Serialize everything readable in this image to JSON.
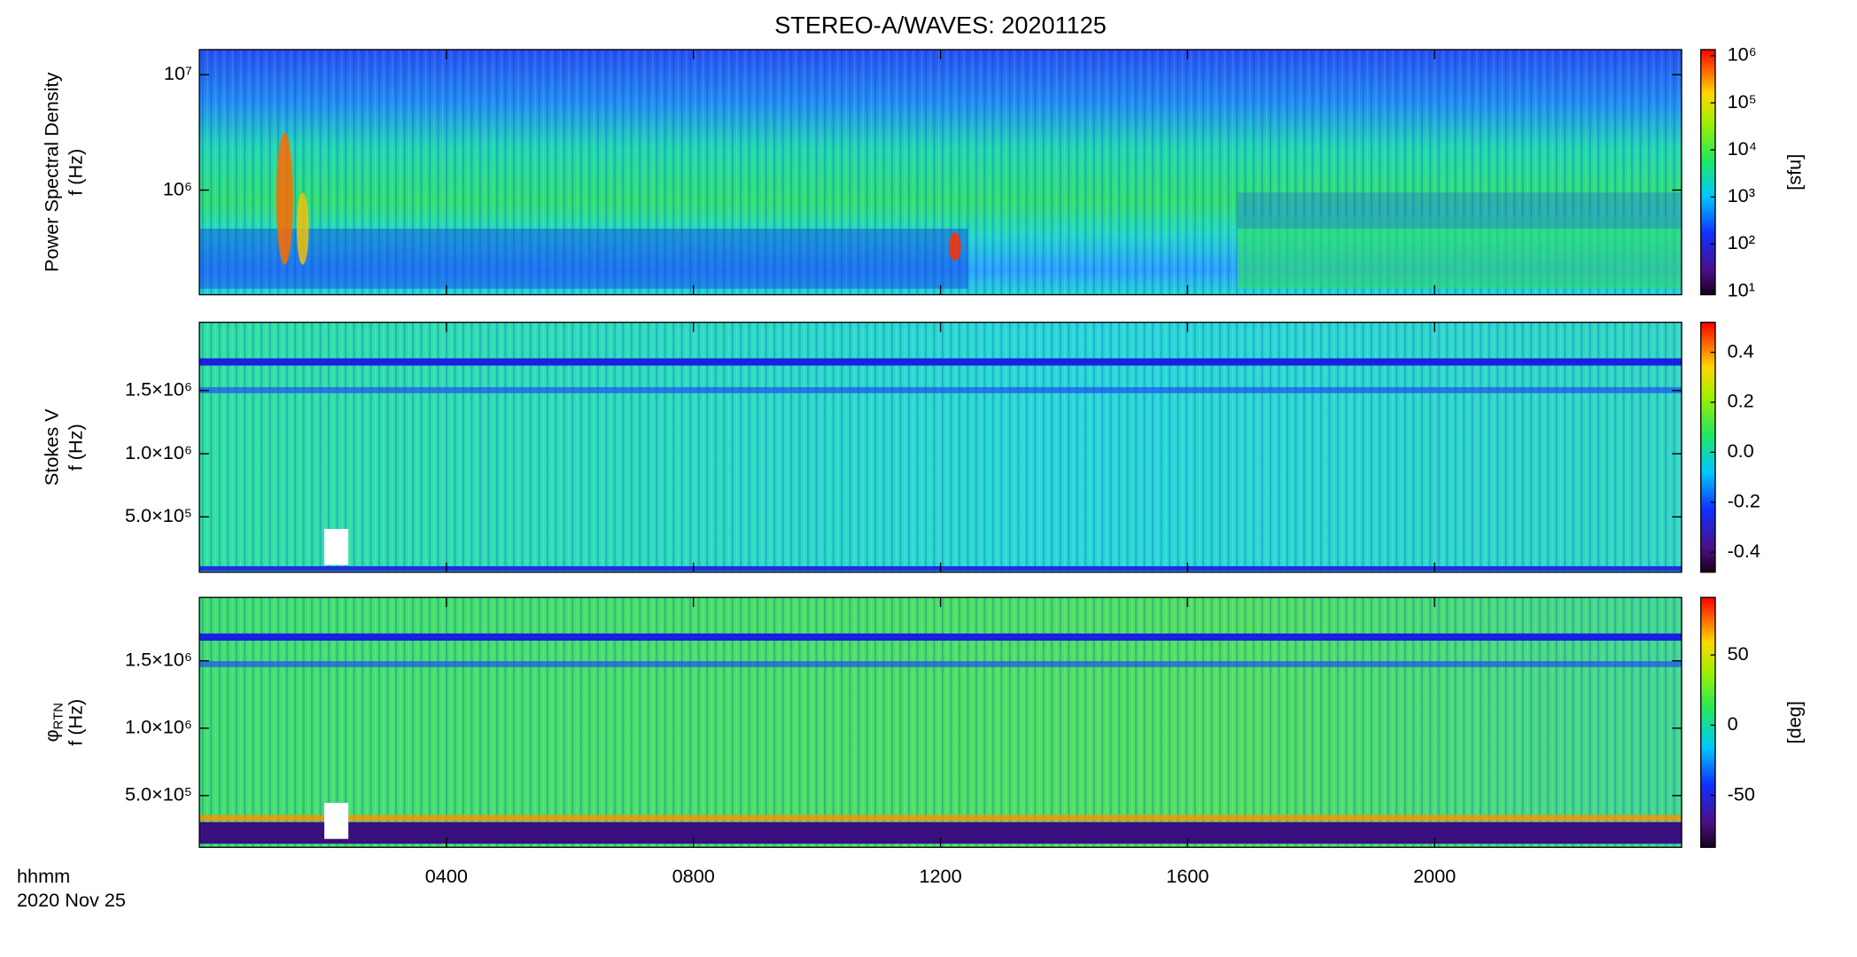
{
  "chart_data": {
    "title": "STEREO-A/WAVES: 20201125",
    "xlabel": "hhmm",
    "date_label": "2020 Nov 25",
    "xlim": [
      0,
      24
    ],
    "xticks": [
      {
        "value": 4,
        "label": "0400"
      },
      {
        "value": 8,
        "label": "0800"
      },
      {
        "value": 12,
        "label": "1200"
      },
      {
        "value": 16,
        "label": "1600"
      },
      {
        "value": 20,
        "label": "2000"
      }
    ],
    "panels": [
      {
        "type": "spectrogram",
        "ylabel": "Power Spectral Density",
        "yunit": "f (Hz)",
        "ylog": true,
        "ylim": [
          124000,
          16500000
        ],
        "yticks": [
          {
            "value": 1000000,
            "label": "10⁶"
          },
          {
            "value": 10000000,
            "label": "10⁷"
          }
        ],
        "colorbar": {
          "label": "[sfu]",
          "log": true,
          "lim": [
            8.4,
            1350000
          ],
          "ticks": [
            {
              "value": 10,
              "label": "10¹"
            },
            {
              "value": 100,
              "label": "10²"
            },
            {
              "value": 1000,
              "label": "10³"
            },
            {
              "value": 10000,
              "label": "10⁴"
            },
            {
              "value": 100000,
              "label": "10⁵"
            },
            {
              "value": 1000000,
              "label": "10⁶"
            }
          ]
        }
      },
      {
        "type": "spectrogram",
        "ylabel": "Stokes V",
        "yunit": "f (Hz)",
        "ylog": false,
        "ylim": [
          62000,
          2040000
        ],
        "yticks": [
          {
            "value": 500000,
            "label": "5.0×10⁵"
          },
          {
            "value": 1000000,
            "label": "1.0×10⁶"
          },
          {
            "value": 1500000,
            "label": "1.5×10⁶"
          }
        ],
        "colorbar": {
          "log": false,
          "lim": [
            -0.48,
            0.52
          ],
          "ticks": [
            {
              "value": -0.4,
              "label": "-0.4"
            },
            {
              "value": -0.2,
              "label": "-0.2"
            },
            {
              "value": 0,
              "label": "0.0"
            },
            {
              "value": 0.2,
              "label": "0.2"
            },
            {
              "value": 0.4,
              "label": "0.4"
            }
          ]
        }
      },
      {
        "type": "spectrogram",
        "ylabel": "φ",
        "ylabel_sub": "RTN",
        "yunit": "f (Hz)",
        "ylog": false,
        "ylim": [
          116000,
          1970000
        ],
        "yticks": [
          {
            "value": 500000,
            "label": "5.0×10⁵"
          },
          {
            "value": 1000000,
            "label": "1.0×10⁶"
          },
          {
            "value": 1500000,
            "label": "1.5×10⁶"
          }
        ],
        "colorbar": {
          "label": "[deg]",
          "log": false,
          "lim": [
            -87,
            91
          ],
          "ticks": [
            -50,
            0,
            50
          ]
        }
      }
    ]
  }
}
